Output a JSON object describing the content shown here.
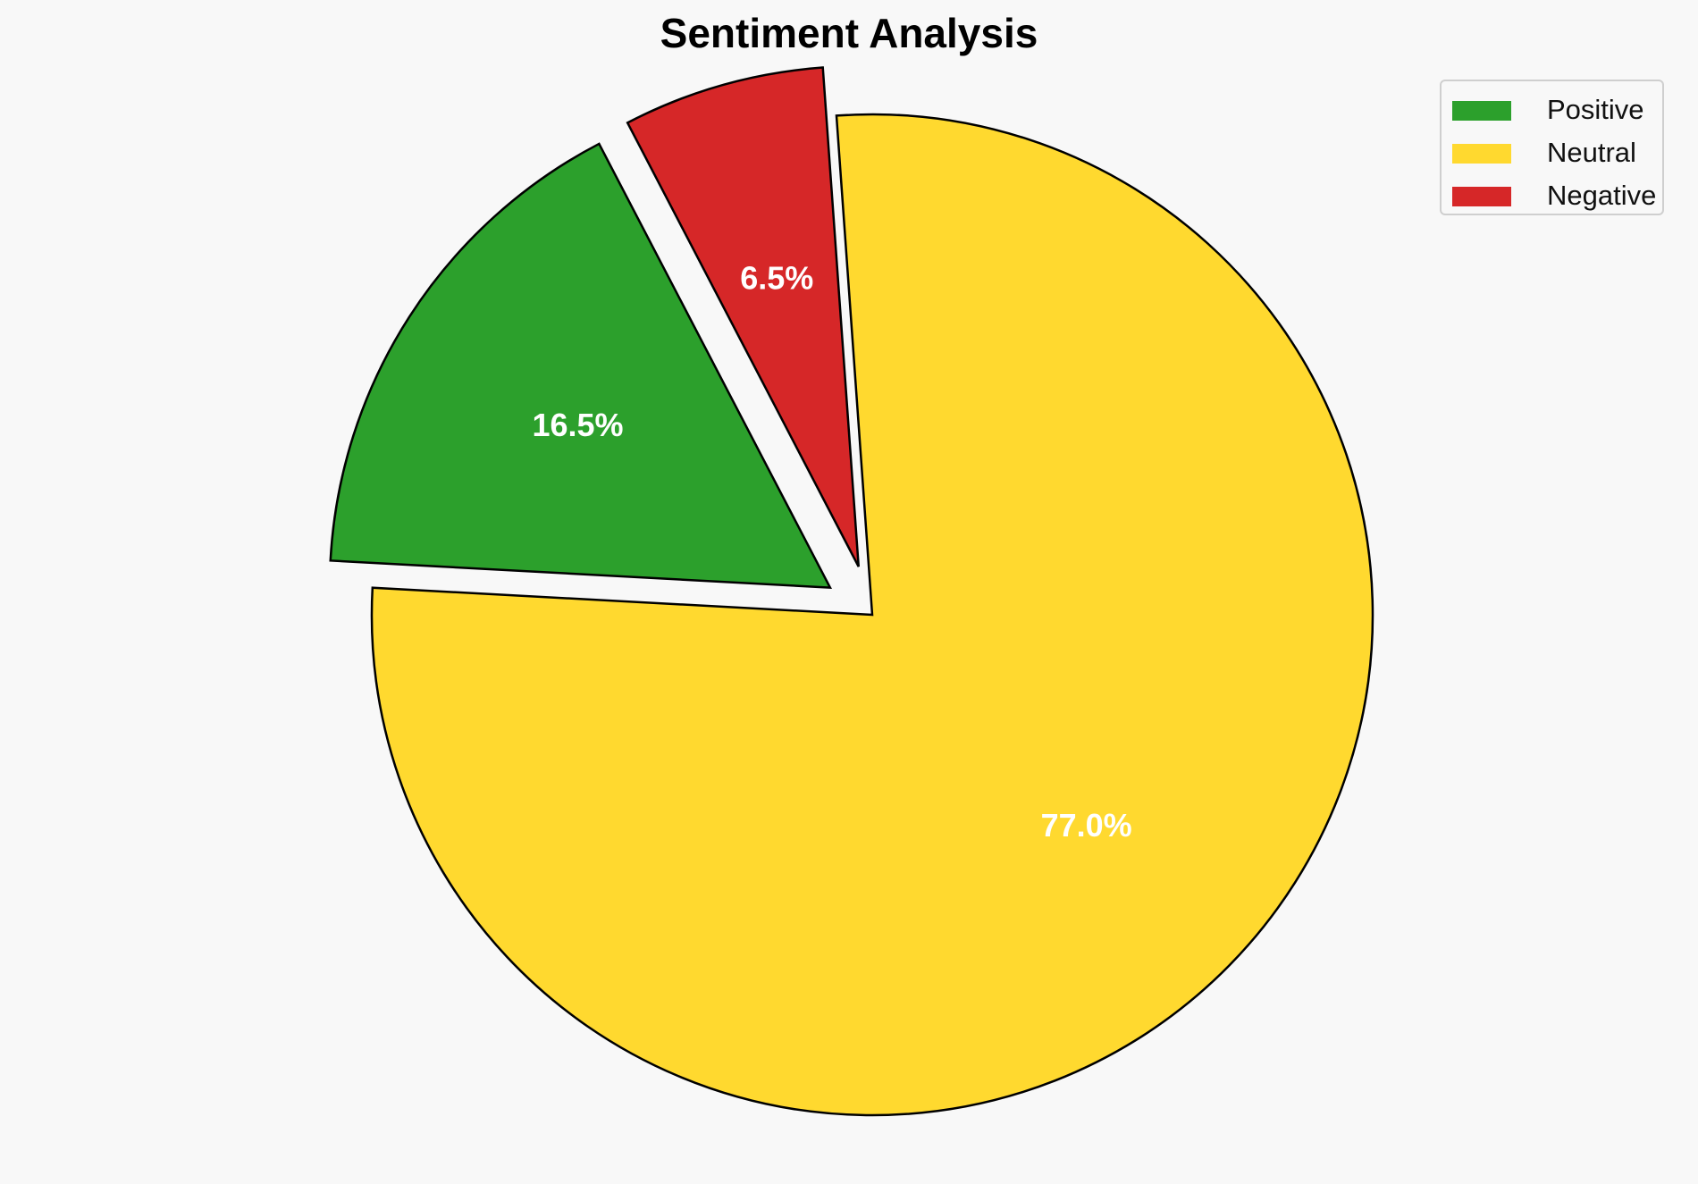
{
  "chart_data": {
    "type": "pie",
    "title": "Sentiment Analysis",
    "legend_position": "top-right",
    "slices": [
      {
        "label": "Positive",
        "value": 16.5,
        "display": "16.5%",
        "color": "#2ca02c",
        "exploded": true
      },
      {
        "label": "Neutral",
        "value": 77.0,
        "display": "77.0%",
        "color": "#ffd92f",
        "exploded": false
      },
      {
        "label": "Negative",
        "value": 6.5,
        "display": "6.5%",
        "color": "#d62728",
        "exploded": true
      }
    ],
    "edge_color": "#000000",
    "label_color": "#ffffff"
  }
}
